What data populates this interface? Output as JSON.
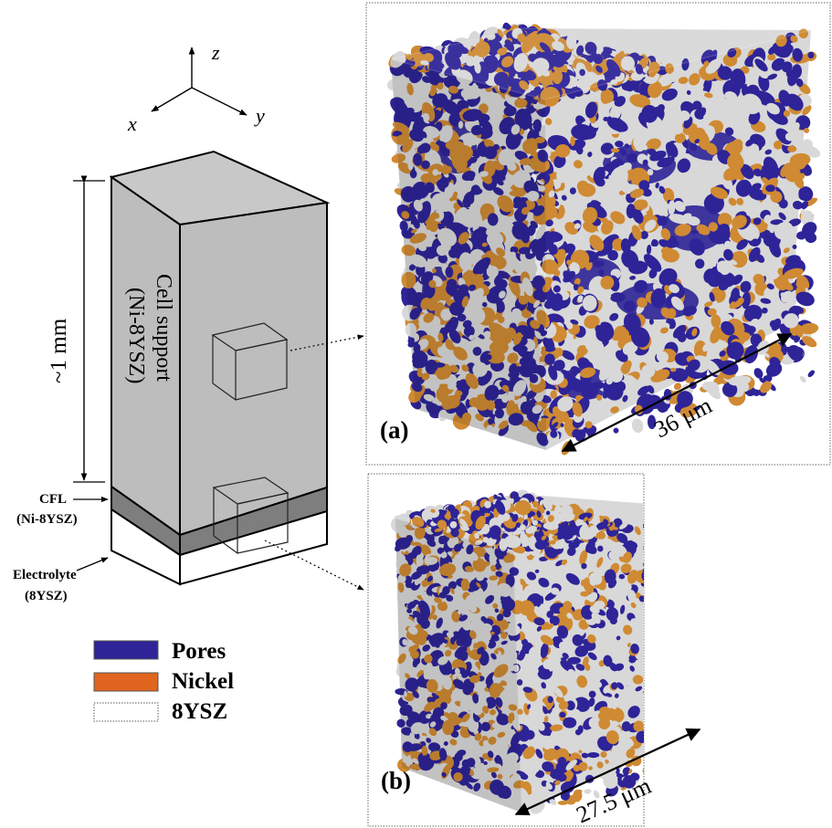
{
  "axes": {
    "x": "x",
    "y": "y",
    "z": "z"
  },
  "dimension_label": "~1 mm",
  "cell_support_label": [
    "Cell support",
    "(Ni-8YSZ)"
  ],
  "cfl_label": [
    "CFL",
    "(Ni-8YSZ)"
  ],
  "electrolyte_label": [
    "Electrolyte",
    "(8YSZ)"
  ],
  "legend": [
    {
      "label": "Pores",
      "color": "#2e2497"
    },
    {
      "label": "Nickel",
      "color": "#e0651e"
    },
    {
      "label": "8YSZ",
      "color": "#ffffff"
    }
  ],
  "panel_a": {
    "tag": "(a)",
    "scale": "36 μm"
  },
  "panel_b": {
    "tag": "(b)",
    "scale": "27.5 μm"
  },
  "colors": {
    "pores": "#2e2497",
    "nickel": "#cf8a33",
    "ysz": "#d8d8d8",
    "support": "#bdbdbd",
    "cfl": "#7e7e7e"
  }
}
